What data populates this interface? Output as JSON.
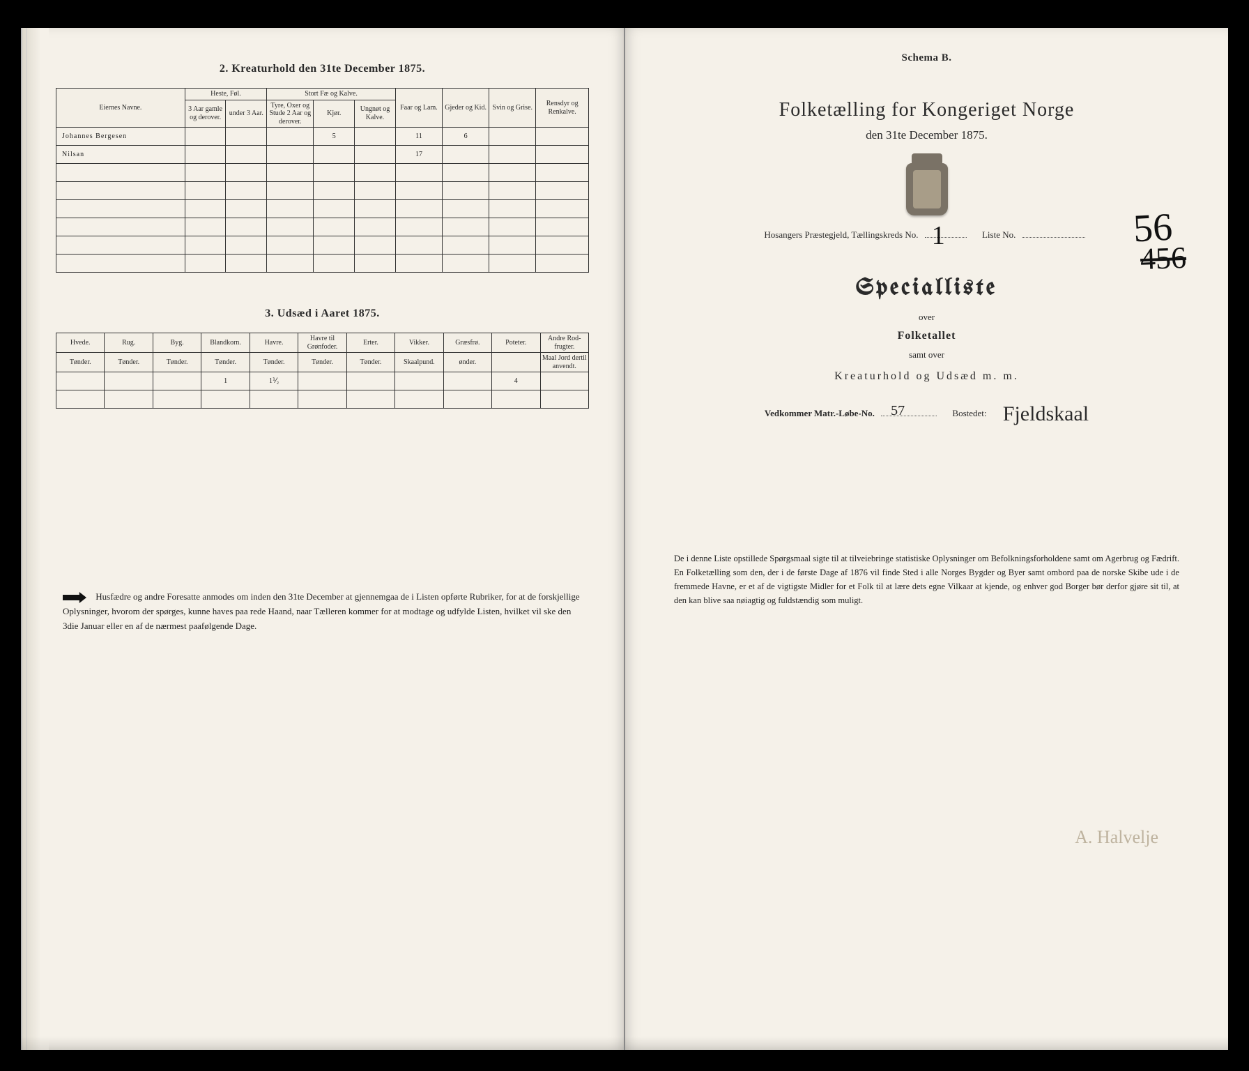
{
  "left": {
    "section2": {
      "title": "2.  Kreaturhold den 31te December 1875.",
      "cols": {
        "name": "Eiernes Navne.",
        "group_horse": "Heste, Føl.",
        "horse_a": "3 Aar gamle og derover.",
        "horse_b": "under 3 Aar.",
        "group_cattle": "Stort Fæ og Kalve.",
        "cattle_a": "Tyre, Oxer og Stude 2 Aar og derover.",
        "cattle_b": "Kjør.",
        "cattle_c": "Ungnøt og Kalve.",
        "sheep": "Faar og Lam.",
        "goat": "Gjeder og Kid.",
        "pig": "Svin og Grise.",
        "reindeer": "Rensdyr og Renkalve."
      },
      "rows": [
        {
          "name": "Johannes Bergesen",
          "cattle_b": "5",
          "sheep": "11",
          "goat": "6"
        },
        {
          "name": "Nilsan",
          "sheep": "17"
        }
      ],
      "blank_rows": 6
    },
    "section3": {
      "title": "3.  Udsæd i Aaret 1875.",
      "cols": [
        {
          "h": "Hvede.",
          "s": "Tønder."
        },
        {
          "h": "Rug.",
          "s": "Tønder."
        },
        {
          "h": "Byg.",
          "s": "Tønder."
        },
        {
          "h": "Blandkorn.",
          "s": "Tønder."
        },
        {
          "h": "Havre.",
          "s": "Tønder."
        },
        {
          "h": "Havre til Grønfoder.",
          "s": "Tønder."
        },
        {
          "h": "Erter.",
          "s": "Tønder."
        },
        {
          "h": "Vikker.",
          "s": "Skaalpund."
        },
        {
          "h": "Græsfrø.",
          "s": "ønder."
        },
        {
          "h": "Poteter.",
          "s": ""
        },
        {
          "h": "Andre Rod-frugter.",
          "s": "Maal Jord dertil anvendt."
        }
      ],
      "row": {
        "blandkorn": "1",
        "havre": "1⅟₂",
        "poteter": "4"
      }
    },
    "footnote": "Husfædre og andre Foresatte anmodes om inden den 31te December at gjennemgaa de i Listen opførte Rubriker, for at de forskjellige Oplysninger, hvorom der spørges, kunne haves paa rede Haand, naar Tælleren kommer for at modtage og udfylde Listen, hvilket vil ske den 3die Januar eller en af de nærmest paafølgende Dage."
  },
  "right": {
    "schema": "Schema B.",
    "title": "Folketælling for Kongeriget Norge",
    "subtitle": "den 31te December 1875.",
    "line_prefix": "Hosangers Præstegjeld, Tællingskreds No.",
    "line_kreds": "1",
    "liste_label": "Liste No.",
    "liste_strike": "456",
    "liste_over": "56",
    "special": "Specialliste",
    "over1": "over",
    "folketallet": "Folketallet",
    "over2": "samt over",
    "kreatur": "Kreaturhold og Udsæd m. m.",
    "matr_label": "Vedkommer Matr.-Løbe-No.",
    "matr_val": "57",
    "bosted_label": "Bostedet:",
    "bosted_val": "Fjeldskaal",
    "signature": "A. Halvelje",
    "footnote": "De i denne Liste opstillede Spørgsmaal sigte til at tilveiebringe statistiske Oplysninger om Befolkningsforholdene samt om Agerbrug og Fædrift. En Folketælling som den, der i de første Dage af 1876 vil finde Sted i alle Norges Bygder og Byer samt ombord paa de norske Skibe ude i de fremmede Havne, er et af de vigtigste Midler for et Folk til at lære dets egne Vilkaar at kjende, og enhver god Borger bør derfor gjøre sit til, at den kan blive saa nøiagtig og fuldstændig som muligt."
  }
}
